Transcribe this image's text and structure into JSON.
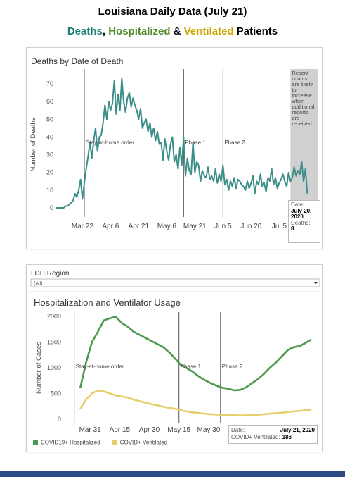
{
  "header": {
    "title": "Louisiana Daily Data (July 21)",
    "subtitle": [
      {
        "text": "Deaths",
        "color": "#1b7f72"
      },
      {
        "text": ", "
      },
      {
        "text": "Hospitalized",
        "color": "#4f8a2a"
      },
      {
        "text": " & "
      },
      {
        "text": "Ventilated",
        "color": "#c9a600"
      },
      {
        "text": " Patients"
      }
    ]
  },
  "chart_data": [
    {
      "type": "line",
      "title": "Deaths by Date of Death",
      "y_label": "Number of Deaths",
      "x": [
        "Mar 8",
        "Mar 9",
        "Mar 10",
        "Mar 11",
        "Mar 12",
        "Mar 13",
        "Mar 14",
        "Mar 15",
        "Mar 16",
        "Mar 17",
        "Mar 18",
        "Mar 19",
        "Mar 20",
        "Mar 21",
        "Mar 22",
        "Mar 23",
        "Mar 24",
        "Mar 25",
        "Mar 26",
        "Mar 27",
        "Mar 28",
        "Mar 29",
        "Mar 30",
        "Mar 31",
        "Apr 1",
        "Apr 2",
        "Apr 3",
        "Apr 4",
        "Apr 5",
        "Apr 6",
        "Apr 7",
        "Apr 8",
        "Apr 9",
        "Apr 10",
        "Apr 11",
        "Apr 12",
        "Apr 13",
        "Apr 14",
        "Apr 15",
        "Apr 16",
        "Apr 17",
        "Apr 18",
        "Apr 19",
        "Apr 20",
        "Apr 21",
        "Apr 22",
        "Apr 23",
        "Apr 24",
        "Apr 25",
        "Apr 26",
        "Apr 27",
        "Apr 28",
        "Apr 29",
        "Apr 30",
        "May 1",
        "May 2",
        "May 3",
        "May 4",
        "May 5",
        "May 6",
        "May 7",
        "May 8",
        "May 9",
        "May 10",
        "May 11",
        "May 12",
        "May 13",
        "May 14",
        "May 15",
        "May 16",
        "May 17",
        "May 18",
        "May 19",
        "May 20",
        "May 21",
        "May 22",
        "May 23",
        "May 24",
        "May 25",
        "May 26",
        "May 27",
        "May 28",
        "May 29",
        "May 30",
        "May 31",
        "Jun 1",
        "Jun 2",
        "Jun 3",
        "Jun 4",
        "Jun 5",
        "Jun 6",
        "Jun 7",
        "Jun 8",
        "Jun 9",
        "Jun 10",
        "Jun 11",
        "Jun 12",
        "Jun 13",
        "Jun 14",
        "Jun 15",
        "Jun 16",
        "Jun 17",
        "Jun 18",
        "Jun 19",
        "Jun 20",
        "Jun 21",
        "Jun 22",
        "Jun 23",
        "Jun 24",
        "Jun 25",
        "Jun 26",
        "Jun 27",
        "Jun 28",
        "Jun 29",
        "Jun 30",
        "Jul 1",
        "Jul 2",
        "Jul 3",
        "Jul 4",
        "Jul 5",
        "Jul 6",
        "Jul 7",
        "Jul 8",
        "Jul 9",
        "Jul 10",
        "Jul 11",
        "Jul 12",
        "Jul 13",
        "Jul 14",
        "Jul 15",
        "Jul 16",
        "Jul 17",
        "Jul 18",
        "Jul 19",
        "Jul 20"
      ],
      "series": [
        {
          "color": "#3a8f88",
          "values": [
            0,
            0,
            0,
            0,
            0,
            1,
            1,
            2,
            3,
            4,
            8,
            6,
            10,
            16,
            5,
            14,
            22,
            29,
            37,
            28,
            38,
            45,
            32,
            40,
            41,
            48,
            58,
            50,
            60,
            55,
            59,
            72,
            53,
            64,
            55,
            73,
            60,
            54,
            62,
            65,
            57,
            62,
            58,
            55,
            50,
            56,
            45,
            48,
            50,
            43,
            48,
            40,
            45,
            38,
            43,
            36,
            37,
            27,
            39,
            32,
            27,
            36,
            40,
            26,
            30,
            22,
            34,
            24,
            40,
            18,
            28,
            21,
            19,
            37,
            20,
            26,
            24,
            15,
            21,
            18,
            17,
            23,
            16,
            18,
            15,
            22,
            14,
            19,
            15,
            24,
            13,
            16,
            10,
            15,
            12,
            17,
            11,
            16,
            15,
            13,
            12,
            10,
            15,
            11,
            14,
            18,
            8,
            15,
            13,
            19,
            12,
            14,
            9,
            17,
            15,
            22,
            13,
            17,
            11,
            14,
            16,
            19,
            15,
            12,
            20,
            15,
            17,
            23,
            18,
            21,
            19,
            26,
            15,
            22,
            8
          ]
        }
      ],
      "xlim": [
        "Mar 8",
        "Jul 21"
      ],
      "xticks": [
        "Mar 22",
        "Apr 6",
        "Apr 21",
        "May 6",
        "May 21",
        "Jun 5",
        "Jun 20",
        "Jul 5"
      ],
      "ylim": [
        -4,
        78
      ],
      "yticks": [
        0,
        10,
        20,
        30,
        40,
        50,
        60,
        70
      ],
      "events": [
        {
          "x": "Mar 23",
          "label": "Stay-at-home order"
        },
        {
          "x": "May 15",
          "label": "Phase 1"
        },
        {
          "x": "Jun 5",
          "label": "Phase 2"
        }
      ],
      "shade": {
        "from": "Jul 11",
        "color": "#c8c8c8",
        "text": "Recent counts are likely to increase when additional reports are received"
      },
      "tooltip": {
        "date_label": "Date:",
        "date": "July 20, 2020",
        "value_label": "Deaths:",
        "value": 8
      }
    },
    {
      "type": "line",
      "filter_label": "LDH Region",
      "filter_value": "(All)",
      "title": "Hospitalization and Ventilator Usage",
      "y_label": "Number of Cases",
      "x": [
        "Mar 26",
        "Mar 29",
        "Apr 1",
        "Apr 4",
        "Apr 7",
        "Apr 10",
        "Apr 13",
        "Apr 16",
        "Apr 19",
        "Apr 22",
        "Apr 25",
        "Apr 28",
        "May 1",
        "May 4",
        "May 7",
        "May 10",
        "May 13",
        "May 16",
        "May 19",
        "May 22",
        "May 25",
        "May 28",
        "May 31",
        "Jun 3",
        "Jun 6",
        "Jun 9",
        "Jun 12",
        "Jun 15",
        "Jun 18",
        "Jun 21",
        "Jun 24",
        "Jun 27",
        "Jun 30",
        "Jul 3",
        "Jul 6",
        "Jul 9",
        "Jul 12",
        "Jul 15",
        "Jul 18",
        "Jul 21"
      ],
      "series": [
        {
          "name": "COVID19+ Hospitalized",
          "color": "#4c9a4c",
          "values": [
            600,
            1100,
            1500,
            1700,
            1920,
            1960,
            1990,
            1870,
            1800,
            1700,
            1640,
            1580,
            1520,
            1460,
            1400,
            1300,
            1180,
            1050,
            990,
            920,
            830,
            760,
            700,
            650,
            610,
            590,
            560,
            570,
            620,
            700,
            780,
            880,
            1000,
            1100,
            1220,
            1340,
            1400,
            1420,
            1480,
            1550
          ]
        },
        {
          "name": "COVID+ Ventilated",
          "color": "#e6cf6a",
          "values": [
            200,
            380,
            500,
            560,
            540,
            500,
            460,
            440,
            420,
            380,
            350,
            320,
            290,
            270,
            240,
            220,
            200,
            170,
            150,
            130,
            120,
            105,
            95,
            90,
            85,
            80,
            75,
            72,
            75,
            80,
            85,
            95,
            105,
            115,
            125,
            140,
            150,
            160,
            172,
            186
          ]
        }
      ],
      "xlim": [
        "Mar 21",
        "Jul 22"
      ],
      "xticks": [
        "Mar 31",
        "Apr 15",
        "Apr 30",
        "May 15",
        "May 30"
      ],
      "ylim": [
        -70,
        2080
      ],
      "yticks": [
        0,
        500,
        1000,
        1500,
        2000
      ],
      "events": [
        {
          "x": "Mar 23",
          "label": "Stay-at-home order"
        },
        {
          "x": "May 15",
          "label": "Phase 1"
        },
        {
          "x": "Jun 5",
          "label": "Phase 2"
        }
      ],
      "legend": "bottom-left",
      "tooltip": {
        "date_label": "Date:",
        "date": "July 21, 2020",
        "value_label": "COVID+ Ventilated:",
        "value": 186
      }
    }
  ]
}
